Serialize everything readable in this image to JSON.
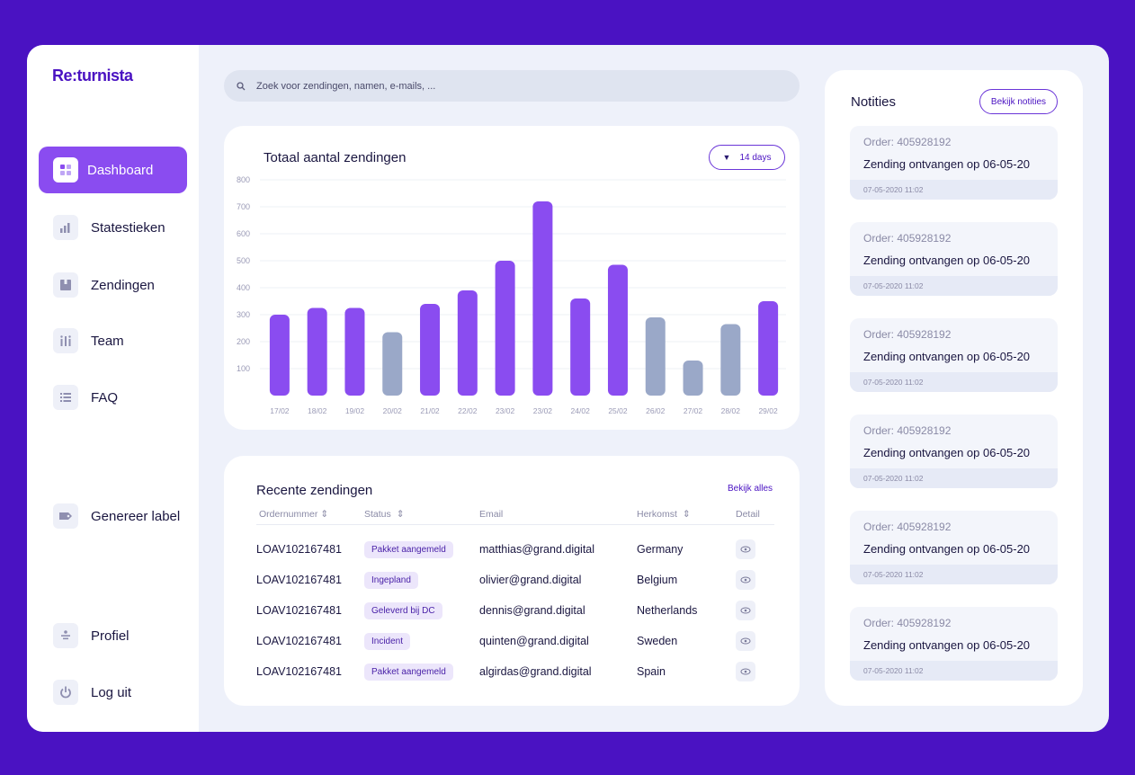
{
  "app": {
    "logo": "Re:turnista"
  },
  "sidebar": {
    "items": [
      {
        "label": "Dashboard",
        "icon": "dashboard-icon",
        "active": true
      },
      {
        "label": "Statestieken",
        "icon": "bar-chart-icon"
      },
      {
        "label": "Zendingen",
        "icon": "package-icon"
      },
      {
        "label": "Team",
        "icon": "team-icon"
      },
      {
        "label": "FAQ",
        "icon": "list-icon"
      },
      {
        "label": "Genereer label",
        "icon": "label-icon"
      },
      {
        "label": "Profiel",
        "icon": "profile-icon"
      },
      {
        "label": "Log uit",
        "icon": "power-icon"
      }
    ]
  },
  "search": {
    "placeholder": "Zoek voor zendingen, namen, e-mails, ..."
  },
  "chart_card": {
    "title": "Totaal aantal zendingen",
    "range": "14 days"
  },
  "chart_data": {
    "type": "bar",
    "title": "Totaal aantal zendingen",
    "categories": [
      "17/02",
      "18/02",
      "19/02",
      "20/02",
      "21/02",
      "22/02",
      "23/02",
      "23/02",
      "24/02",
      "25/02",
      "26/02",
      "27/02",
      "28/02",
      "29/02"
    ],
    "values": [
      300,
      325,
      325,
      235,
      340,
      390,
      500,
      720,
      360,
      485,
      290,
      130,
      265,
      350
    ],
    "highlight": [
      true,
      true,
      true,
      false,
      true,
      true,
      true,
      true,
      true,
      true,
      false,
      false,
      false,
      true
    ],
    "yticks": [
      100,
      200,
      300,
      400,
      500,
      600,
      700,
      800
    ],
    "ylim": [
      0,
      800
    ],
    "colors": {
      "primary": "#8a4cf0",
      "muted": "#9aa8c8"
    }
  },
  "recent": {
    "title": "Recente zendingen",
    "see_all": "Bekijk alles",
    "columns": {
      "order": "Ordernummer",
      "status": "Status",
      "email": "Email",
      "origin": "Herkomst",
      "detail": "Detail"
    },
    "rows": [
      {
        "order": "LOAV102167481",
        "status": "Pakket aangemeld",
        "email": "matthias@grand.digital",
        "origin": "Germany"
      },
      {
        "order": "LOAV102167481",
        "status": "Ingepland",
        "email": "olivier@grand.digital",
        "origin": "Belgium"
      },
      {
        "order": "LOAV102167481",
        "status": "Geleverd bij DC",
        "email": "dennis@grand.digital",
        "origin": "Netherlands"
      },
      {
        "order": "LOAV102167481",
        "status": "Incident",
        "email": "quinten@grand.digital",
        "origin": "Sweden"
      },
      {
        "order": "LOAV102167481",
        "status": "Pakket aangemeld",
        "email": "algirdas@grand.digital",
        "origin": "Spain"
      }
    ]
  },
  "notes": {
    "title": "Notities",
    "button": "Bekijk notities",
    "items": [
      {
        "order": "Order: 405928192",
        "message": "Zending ontvangen op 06-05-20",
        "time": "07-05-2020  11:02"
      },
      {
        "order": "Order: 405928192",
        "message": "Zending ontvangen op 06-05-20",
        "time": "07-05-2020  11:02"
      },
      {
        "order": "Order: 405928192",
        "message": "Zending ontvangen op 06-05-20",
        "time": "07-05-2020  11:02"
      },
      {
        "order": "Order: 405928192",
        "message": "Zending ontvangen op 06-05-20",
        "time": "07-05-2020  11:02"
      },
      {
        "order": "Order: 405928192",
        "message": "Zending ontvangen op 06-05-20",
        "time": "07-05-2020  11:02"
      },
      {
        "order": "Order: 405928192",
        "message": "Zending ontvangen op 06-05-20",
        "time": "07-05-2020  11:02"
      }
    ]
  }
}
